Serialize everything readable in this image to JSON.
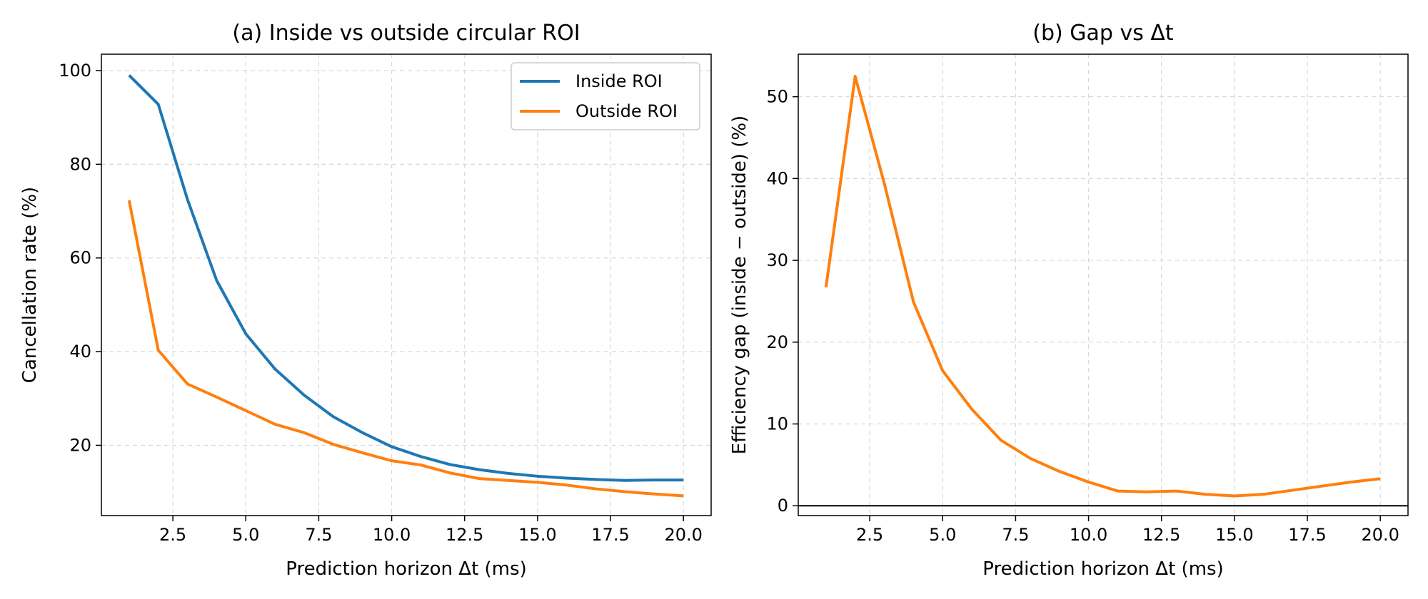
{
  "chart_data": [
    {
      "type": "line",
      "title": "(a) Inside vs outside circular ROI",
      "xlabel": "Prediction horizon Δt (ms)",
      "ylabel": "Cancellation rate (%)",
      "xlim": [
        0.05,
        20.95
      ],
      "ylim": [
        5.0,
        103.5
      ],
      "xticks": [
        2.5,
        5.0,
        7.5,
        10.0,
        12.5,
        15.0,
        17.5,
        20.0
      ],
      "xtick_labels": [
        "2.5",
        "5.0",
        "7.5",
        "10.0",
        "12.5",
        "15.0",
        "17.5",
        "20.0"
      ],
      "yticks": [
        20,
        40,
        60,
        80,
        100
      ],
      "ytick_labels": [
        "20",
        "40",
        "60",
        "80",
        "100"
      ],
      "grid": true,
      "legend": "top-right",
      "x": [
        1,
        2,
        3,
        4,
        5,
        6,
        7,
        8,
        9,
        10,
        11,
        12,
        13,
        14,
        15,
        16,
        17,
        18,
        19,
        20
      ],
      "series": [
        {
          "name": "Inside ROI",
          "color": "#1f77b4",
          "values": [
            99.0,
            92.8,
            72.5,
            55.2,
            43.8,
            36.3,
            30.7,
            26.1,
            22.7,
            19.7,
            17.6,
            15.9,
            14.8,
            14.0,
            13.4,
            13.0,
            12.7,
            12.5,
            12.6,
            12.6
          ]
        },
        {
          "name": "Outside ROI",
          "color": "#ff7f0e",
          "values": [
            72.3,
            40.3,
            33.1,
            30.3,
            27.4,
            24.5,
            22.7,
            20.2,
            18.4,
            16.7,
            15.8,
            14.1,
            12.9,
            12.5,
            12.1,
            11.5,
            10.7,
            10.1,
            9.6,
            9.2
          ]
        }
      ]
    },
    {
      "type": "line",
      "title": "(b) Gap vs Δt",
      "xlabel": "Prediction horizon Δt (ms)",
      "ylabel": "Efficiency gap (inside − outside) (%)",
      "xlim": [
        0.05,
        20.95
      ],
      "ylim": [
        -1.2,
        55.2
      ],
      "xticks": [
        2.5,
        5.0,
        7.5,
        10.0,
        12.5,
        15.0,
        17.5,
        20.0
      ],
      "xtick_labels": [
        "2.5",
        "5.0",
        "7.5",
        "10.0",
        "12.5",
        "15.0",
        "17.5",
        "20.0"
      ],
      "yticks": [
        0,
        10,
        20,
        30,
        40,
        50
      ],
      "ytick_labels": [
        "0",
        "10",
        "20",
        "30",
        "40",
        "50"
      ],
      "grid": true,
      "reference_line_y": 0,
      "x": [
        1,
        2,
        3,
        4,
        5,
        6,
        7,
        8,
        9,
        10,
        11,
        12,
        13,
        14,
        15,
        16,
        17,
        18,
        19,
        20
      ],
      "series": [
        {
          "color": "#ff7f0e",
          "values": [
            26.7,
            52.5,
            39.4,
            24.9,
            16.5,
            11.8,
            8.0,
            5.8,
            4.2,
            2.9,
            1.8,
            1.7,
            1.8,
            1.4,
            1.2,
            1.4,
            1.9,
            2.4,
            2.9,
            3.3
          ]
        }
      ]
    }
  ]
}
